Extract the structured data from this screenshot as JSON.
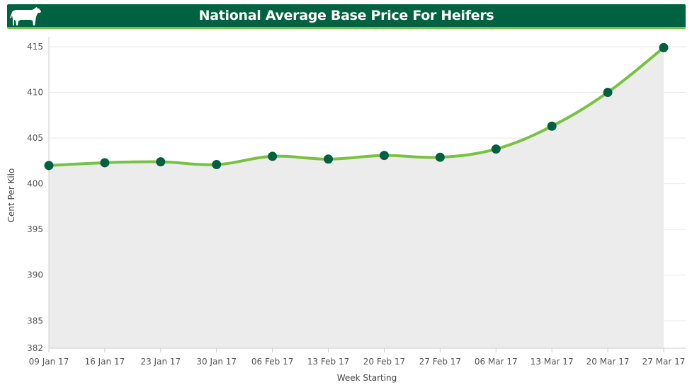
{
  "header": {
    "title": "National Average Base Price For Heifers",
    "icon": "cow-icon"
  },
  "colors": {
    "header_bg": "#006240",
    "header_underline": "#7ac143",
    "line": "#7ac143",
    "marker": "#00603f",
    "area_fill": "#ececec",
    "grid": "#e6e6e6"
  },
  "chart_data": {
    "type": "area",
    "title": "National Average Base Price For Heifers",
    "xlabel": "Week Starting",
    "ylabel": "Cent Per Kilo",
    "categories": [
      "09 Jan 17",
      "16 Jan 17",
      "23 Jan 17",
      "30 Jan 17",
      "06 Feb 17",
      "13 Feb 17",
      "20 Feb 17",
      "27 Feb 17",
      "06 Mar 17",
      "13 Mar 17",
      "20 Mar 17",
      "27 Mar 17"
    ],
    "series": [
      {
        "values": [
          402.0,
          402.3,
          402.4,
          402.1,
          403.0,
          402.7,
          403.1,
          402.9,
          403.8,
          406.3,
          410.0,
          414.9
        ]
      }
    ],
    "ylim": [
      382,
      416
    ],
    "yticks": [
      382,
      385,
      390,
      395,
      400,
      405,
      410,
      415
    ],
    "grid": true,
    "legend": "none"
  }
}
